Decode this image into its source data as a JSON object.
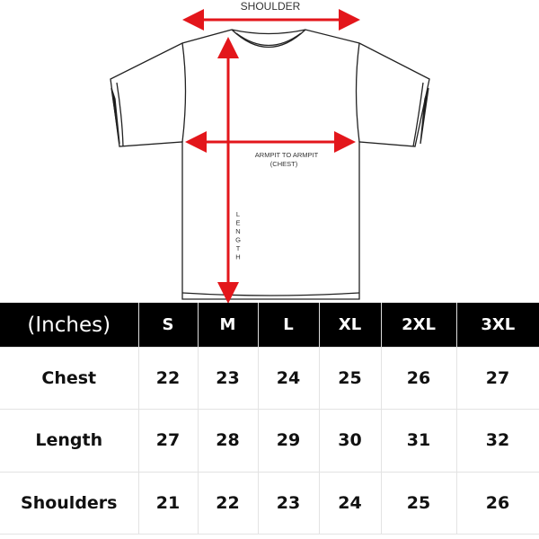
{
  "diagram": {
    "shoulder_label": "SHOULDER",
    "chest_label_line1": "ARMPIT TO ARMPIT",
    "chest_label_line2": "(CHEST)",
    "length_label": "LENGTH",
    "arrow_color": "#e3161b"
  },
  "table": {
    "unit_header": "(Inches)",
    "sizes": [
      "S",
      "M",
      "L",
      "XL",
      "2XL",
      "3XL"
    ],
    "rows": [
      {
        "label": "Chest",
        "values": [
          "22",
          "23",
          "24",
          "25",
          "26",
          "27"
        ]
      },
      {
        "label": "Length",
        "values": [
          "27",
          "28",
          "29",
          "30",
          "31",
          "32"
        ]
      },
      {
        "label": "Shoulders",
        "values": [
          "21",
          "22",
          "23",
          "24",
          "25",
          "26"
        ]
      }
    ]
  }
}
